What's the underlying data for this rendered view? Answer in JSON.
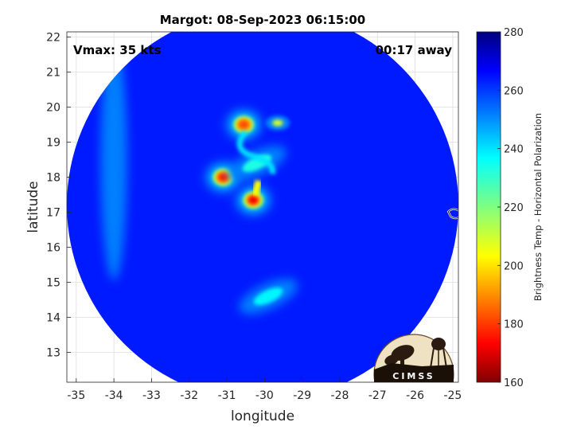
{
  "chart_data": {
    "type": "heatmap",
    "title": "Margot: 08-Sep-2023 06:15:00",
    "xlabel": "longitude",
    "ylabel": "latitude",
    "xlim": [
      -35.25,
      -24.85
    ],
    "ylim": [
      12.15,
      22.15
    ],
    "xticks": [
      -35,
      -34,
      -33,
      -32,
      -31,
      -30,
      -29,
      -28,
      -27,
      -26,
      -25
    ],
    "yticks": [
      13,
      14,
      15,
      16,
      17,
      18,
      19,
      20,
      21,
      22
    ],
    "grid": true,
    "annotations": {
      "vmax": "Vmax: 35 kts",
      "away": "00:17 away"
    },
    "colorbar": {
      "label": "Brightness Temp - Horizontal Polarization",
      "range": [
        160,
        280
      ],
      "ticks": [
        160,
        180,
        200,
        220,
        240,
        260,
        280
      ],
      "colormap": "jet"
    },
    "swath": {
      "center": [
        -30.05,
        17.2
      ],
      "radius_deg": 5.2,
      "background_tb": 262
    },
    "features": [
      {
        "lon": -30.3,
        "lat": 17.35,
        "tb": 174,
        "kind": "cold core"
      },
      {
        "lon": -31.1,
        "lat": 18.0,
        "tb": 178,
        "kind": "cold core"
      },
      {
        "lon": -30.55,
        "lat": 19.5,
        "tb": 184,
        "kind": "cold core"
      },
      {
        "lon": -29.65,
        "lat": 19.55,
        "tb": 210,
        "kind": "cold spot"
      },
      {
        "lon": -30.2,
        "lat": 18.4,
        "tb": 232,
        "kind": "band"
      },
      {
        "lon": -29.9,
        "lat": 14.6,
        "tb": 236,
        "kind": "band"
      },
      {
        "lon": -34.0,
        "lat": 18.5,
        "tb": 247,
        "kind": "warm streak"
      }
    ],
    "overlay_marker": {
      "lon": -24.95,
      "lat": 16.95,
      "kind": "island outline"
    },
    "logo": "CIMSS"
  },
  "colors": {
    "axes_text": "#262626",
    "grid": "#dedede",
    "background": "#ffffff"
  }
}
